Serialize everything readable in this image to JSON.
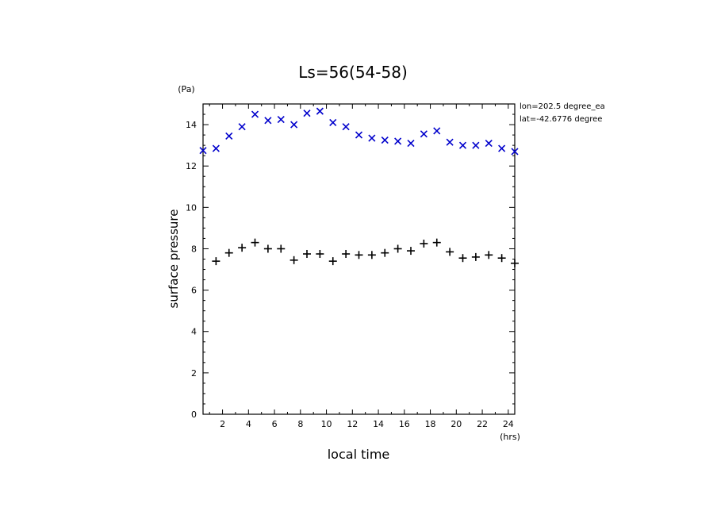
{
  "chart_data": {
    "type": "scatter",
    "title": "Ls=56(54-58)",
    "xlabel": "local time",
    "ylabel": "surface pressure",
    "xunit": "(hrs)",
    "yunit": "(Pa)",
    "annotations": [
      "lon=202.5 degree_ea",
      "lat=-42.6776 degree"
    ],
    "xlim": [
      0.5,
      24.5
    ],
    "ylim": [
      0,
      15
    ],
    "xticks": [
      2,
      4,
      6,
      8,
      10,
      12,
      14,
      16,
      18,
      20,
      22,
      24
    ],
    "yticks": [
      0,
      2,
      4,
      6,
      8,
      10,
      12,
      14
    ],
    "grid": false,
    "series": [
      {
        "marker": "x",
        "color": "#0000cc",
        "x": [
          0.5,
          1.5,
          2.5,
          3.5,
          4.5,
          5.5,
          6.5,
          7.5,
          8.5,
          9.5,
          10.5,
          11.5,
          12.5,
          13.5,
          14.5,
          15.5,
          16.5,
          17.5,
          18.5,
          19.5,
          20.5,
          21.5,
          22.5,
          23.5,
          24.5
        ],
        "values": [
          12.75,
          12.85,
          13.45,
          13.9,
          14.5,
          14.2,
          14.25,
          14.0,
          14.55,
          14.65,
          14.1,
          13.9,
          13.5,
          13.35,
          13.25,
          13.2,
          13.1,
          13.55,
          13.7,
          13.15,
          13.0,
          13.0,
          13.1,
          12.85,
          12.7
        ]
      },
      {
        "marker": "+",
        "color": "#000000",
        "x": [
          1.5,
          2.5,
          3.5,
          4.5,
          5.5,
          6.5,
          7.5,
          8.5,
          9.5,
          10.5,
          11.5,
          12.5,
          13.5,
          14.5,
          15.5,
          16.5,
          17.5,
          18.5,
          19.5,
          20.5,
          21.5,
          22.5,
          23.5,
          24.5
        ],
        "values": [
          7.4,
          7.8,
          8.05,
          8.3,
          8.0,
          8.0,
          7.45,
          7.75,
          7.75,
          7.4,
          7.75,
          7.7,
          7.7,
          7.8,
          8.0,
          7.9,
          8.25,
          8.3,
          7.85,
          7.55,
          7.6,
          7.7,
          7.55,
          7.3
        ]
      }
    ]
  }
}
